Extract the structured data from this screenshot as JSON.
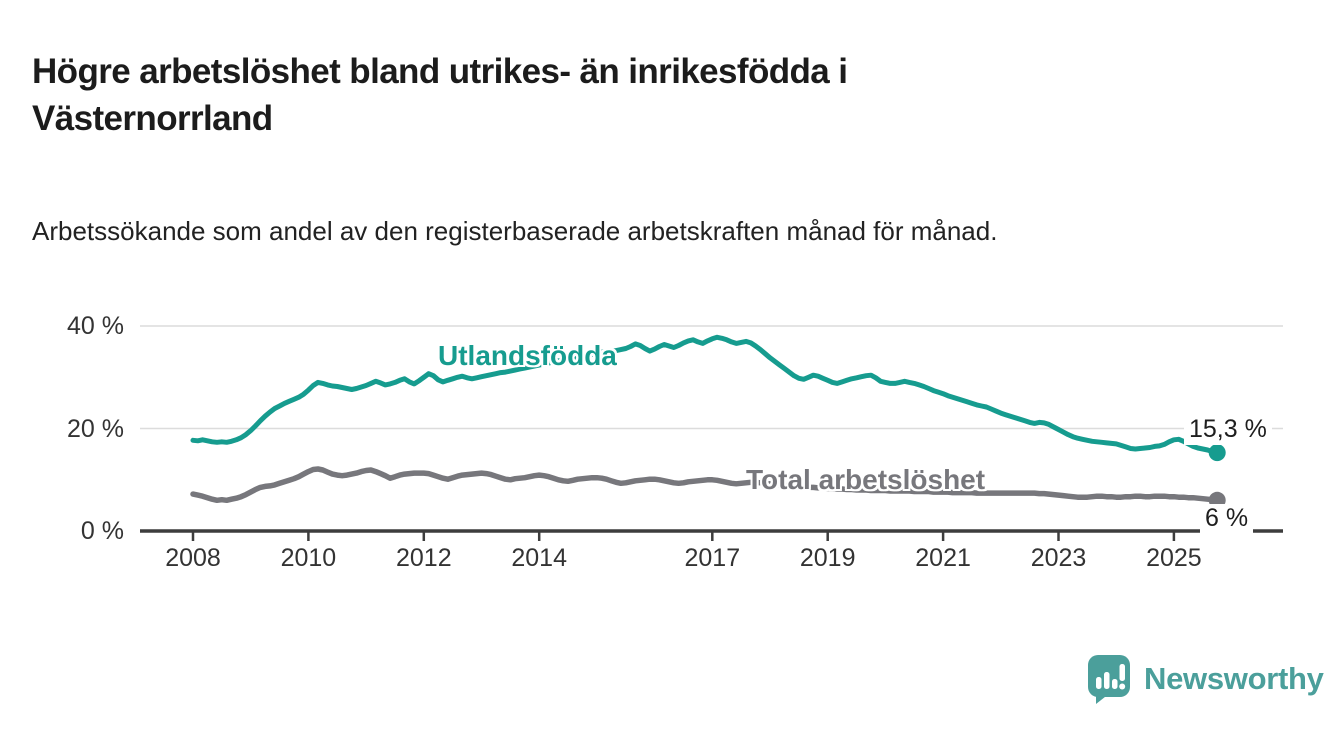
{
  "header": {
    "title": "Högre arbetslöshet bland utrikes- än inrikesfödda i Västernorrland",
    "subtitle": "Arbetssökande som andel av den registerbaserade arbetskraften månad för månad."
  },
  "footer": {
    "brand": "Newsworthy",
    "brand_color": "#4b9f9b",
    "logo_icon": "bar-chart-speech-bubble-icon"
  },
  "chart_data": {
    "type": "line",
    "x_unit": "month",
    "x_start": "2008-01",
    "x_end": "2025-10",
    "ylim": [
      0,
      42
    ],
    "grid": "horizontal",
    "legend": "inline-labels",
    "xticks": [
      2008,
      2010,
      2012,
      2014,
      2017,
      2019,
      2021,
      2023,
      2025
    ],
    "xtick_labels": [
      "2008",
      "2010",
      "2012",
      "2014",
      "2017",
      "2019",
      "2021",
      "2023",
      "2025"
    ],
    "yticks": [
      {
        "value": 40,
        "label": "40 %"
      },
      {
        "value": 20,
        "label": "20 %"
      },
      {
        "value": 0,
        "label": "0 %"
      }
    ],
    "series": [
      {
        "name": "Total arbetslöshet",
        "color": "#77777c",
        "stroke_width": 5.5,
        "end_label": "6 %",
        "values": [
          7.2,
          7.0,
          6.8,
          6.5,
          6.2,
          6.0,
          6.1,
          6.0,
          6.2,
          6.4,
          6.7,
          7.1,
          7.6,
          8.1,
          8.5,
          8.7,
          8.8,
          9.0,
          9.3,
          9.6,
          9.9,
          10.2,
          10.6,
          11.1,
          11.6,
          12.0,
          12.1,
          11.9,
          11.5,
          11.1,
          10.9,
          10.8,
          10.9,
          11.1,
          11.3,
          11.6,
          11.8,
          11.9,
          11.6,
          11.2,
          10.8,
          10.3,
          10.6,
          10.9,
          11.1,
          11.2,
          11.3,
          11.3,
          11.3,
          11.2,
          10.9,
          10.6,
          10.3,
          10.1,
          10.4,
          10.7,
          10.9,
          11.0,
          11.1,
          11.2,
          11.3,
          11.2,
          11.0,
          10.7,
          10.4,
          10.1,
          10.0,
          10.2,
          10.3,
          10.4,
          10.6,
          10.8,
          10.9,
          10.8,
          10.6,
          10.3,
          10.0,
          9.8,
          9.7,
          9.9,
          10.1,
          10.2,
          10.3,
          10.4,
          10.4,
          10.3,
          10.1,
          9.8,
          9.5,
          9.3,
          9.4,
          9.6,
          9.8,
          9.9,
          10.0,
          10.1,
          10.1,
          10.0,
          9.8,
          9.6,
          9.4,
          9.3,
          9.4,
          9.6,
          9.7,
          9.8,
          9.9,
          10.0,
          10.0,
          9.9,
          9.7,
          9.5,
          9.3,
          9.2,
          9.3,
          9.4,
          9.5,
          9.5,
          9.4,
          9.3,
          9.2,
          9.1,
          9.0,
          8.9,
          8.8,
          8.7,
          8.6,
          8.6,
          8.5,
          8.5,
          8.4,
          8.4,
          8.3,
          8.3,
          8.2,
          8.2,
          8.1,
          8.1,
          8.0,
          8.0,
          8.0,
          7.9,
          7.9,
          7.9,
          7.9,
          7.8,
          7.8,
          7.8,
          7.8,
          7.8,
          7.7,
          7.7,
          7.7,
          7.7,
          7.6,
          7.6,
          7.6,
          7.6,
          7.5,
          7.5,
          7.5,
          7.5,
          7.5,
          7.4,
          7.4,
          7.4,
          7.4,
          7.4,
          7.4,
          7.4,
          7.4,
          7.4,
          7.4,
          7.4,
          7.4,
          7.4,
          7.3,
          7.3,
          7.2,
          7.1,
          7.0,
          6.9,
          6.8,
          6.7,
          6.6,
          6.6,
          6.6,
          6.7,
          6.8,
          6.8,
          6.7,
          6.7,
          6.6,
          6.6,
          6.7,
          6.7,
          6.8,
          6.8,
          6.7,
          6.7,
          6.8,
          6.8,
          6.8,
          6.7,
          6.7,
          6.6,
          6.6,
          6.5,
          6.5,
          6.4,
          6.3,
          6.2,
          6.1,
          6.0
        ]
      },
      {
        "name": "Utlandsfödda",
        "color": "#169c8f",
        "stroke_width": 5,
        "end_label": "15,3 %",
        "values": [
          17.7,
          17.6,
          17.8,
          17.6,
          17.4,
          17.3,
          17.4,
          17.3,
          17.5,
          17.8,
          18.2,
          18.8,
          19.6,
          20.5,
          21.5,
          22.4,
          23.2,
          23.9,
          24.4,
          24.9,
          25.3,
          25.7,
          26.1,
          26.7,
          27.5,
          28.4,
          29.0,
          28.8,
          28.5,
          28.3,
          28.2,
          28.0,
          27.8,
          27.6,
          27.8,
          28.1,
          28.4,
          28.8,
          29.2,
          28.9,
          28.5,
          28.7,
          29.0,
          29.4,
          29.7,
          29.1,
          28.7,
          29.3,
          30.0,
          30.7,
          30.3,
          29.5,
          29.1,
          29.4,
          29.7,
          30.0,
          30.2,
          29.9,
          29.7,
          29.9,
          30.1,
          30.3,
          30.5,
          30.7,
          30.9,
          31.0,
          31.2,
          31.4,
          31.6,
          31.8,
          32.0,
          32.2,
          32.4,
          32.6,
          32.8,
          33.0,
          33.2,
          33.3,
          33.5,
          33.7,
          33.9,
          34.1,
          34.3,
          34.5,
          34.7,
          34.9,
          35.1,
          35.0,
          35.2,
          35.4,
          35.6,
          36.0,
          36.5,
          36.2,
          35.6,
          35.1,
          35.5,
          36.0,
          36.4,
          36.1,
          35.8,
          36.2,
          36.7,
          37.1,
          37.3,
          36.9,
          36.6,
          37.1,
          37.5,
          37.8,
          37.6,
          37.3,
          36.9,
          36.6,
          36.8,
          37.0,
          36.7,
          36.1,
          35.4,
          34.6,
          33.8,
          33.1,
          32.4,
          31.7,
          31.0,
          30.3,
          29.8,
          29.6,
          30.0,
          30.4,
          30.2,
          29.8,
          29.4,
          29.0,
          28.8,
          29.1,
          29.4,
          29.7,
          29.9,
          30.1,
          30.3,
          30.4,
          29.9,
          29.2,
          29.0,
          28.8,
          28.8,
          29.0,
          29.2,
          29.0,
          28.8,
          28.5,
          28.2,
          27.8,
          27.4,
          27.1,
          26.8,
          26.4,
          26.1,
          25.8,
          25.5,
          25.2,
          24.9,
          24.6,
          24.4,
          24.2,
          23.8,
          23.4,
          23.0,
          22.7,
          22.4,
          22.1,
          21.8,
          21.5,
          21.2,
          21.0,
          21.2,
          21.1,
          20.8,
          20.3,
          19.8,
          19.3,
          18.8,
          18.4,
          18.1,
          17.9,
          17.7,
          17.5,
          17.4,
          17.3,
          17.2,
          17.1,
          17.0,
          16.7,
          16.4,
          16.1,
          16.0,
          16.1,
          16.2,
          16.3,
          16.5,
          16.6,
          16.9,
          17.4,
          17.8,
          17.9,
          17.5,
          17.0,
          16.5,
          16.2,
          16.0,
          15.8,
          15.5,
          15.3
        ]
      }
    ],
    "colors": {
      "gridline": "#dcdcdc",
      "axis": "#3d3d3d",
      "tick_text": "#333333"
    }
  }
}
